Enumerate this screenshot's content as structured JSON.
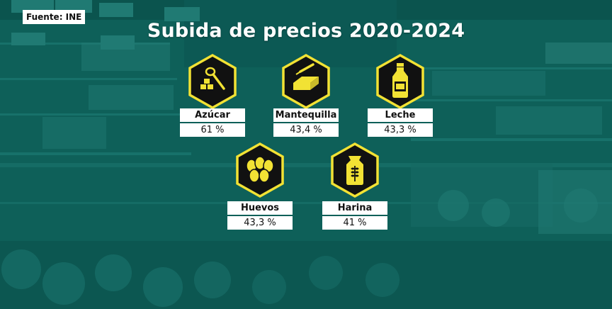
{
  "source": "Fuente: INE",
  "title": "Subida de precios 2020-2024",
  "colors": {
    "accent": "#f2e234",
    "background": "#0d5f58",
    "icon_fill": "#111111",
    "label_bg": "#ffffff"
  },
  "items": [
    {
      "name": "Azúcar",
      "value": "61 %",
      "icon": "sugar-spoon-icon"
    },
    {
      "name": "Mantequilla",
      "value": "43,4 %",
      "icon": "butter-icon"
    },
    {
      "name": "Leche",
      "value": "43,3 %",
      "icon": "milk-bottle-icon"
    },
    {
      "name": "Huevos",
      "value": "43,3 %",
      "icon": "eggs-icon"
    },
    {
      "name": "Harina",
      "value": "41 %",
      "icon": "flour-sack-icon"
    }
  ]
}
